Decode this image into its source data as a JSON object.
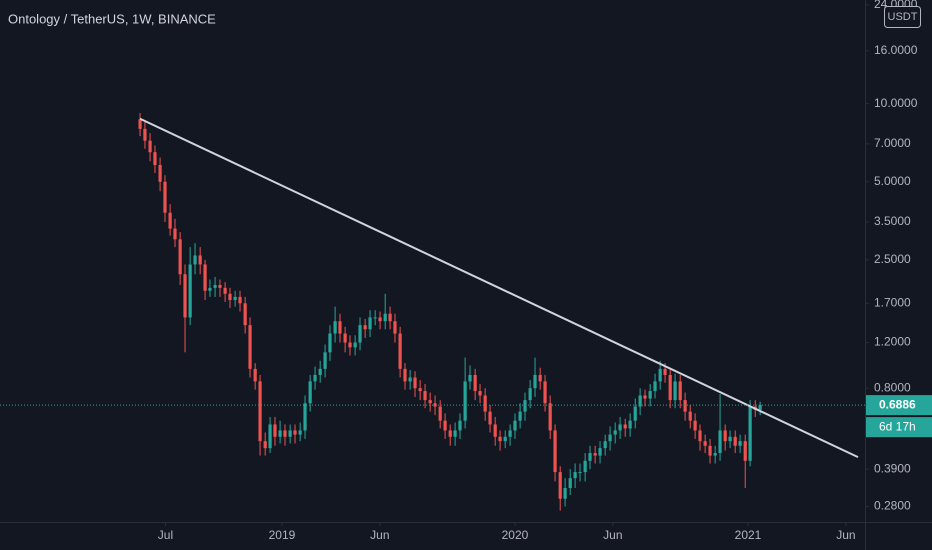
{
  "chart_data": {
    "type": "candlestick",
    "title": "Ontology / TetherUS, 1W, BINANCE",
    "currency": "USDT",
    "countdown": "6d 17h",
    "log_scale": true,
    "grid": false,
    "up_color": "#26a69a",
    "down_color": "#ef5350",
    "xlim": [
      2017.79,
      2021.502
    ],
    "xticks": [
      {
        "value": 2018.5,
        "label": "Jul"
      },
      2019,
      {
        "value": 2019.42,
        "label": "Jun"
      },
      2020,
      {
        "value": 2020.42,
        "label": "Jun"
      },
      2021,
      {
        "value": 2021.42,
        "label": "Jun"
      }
    ],
    "ylim": [
      0.244,
      25.1
    ],
    "yticks": [
      {
        "value": 24,
        "label": "24.0000"
      },
      {
        "value": 16,
        "label": "16.0000"
      },
      {
        "value": 10,
        "label": "10.0000"
      },
      {
        "value": 7,
        "label": "7.0000"
      },
      {
        "value": 5,
        "label": "5.0000"
      },
      {
        "value": 3.5,
        "label": "3.5000"
      },
      {
        "value": 2.5,
        "label": "2.5000"
      },
      {
        "value": 1.7,
        "label": "1.7000"
      },
      {
        "value": 1.2,
        "label": "1.2000"
      },
      {
        "value": 0.8,
        "label": "0.8000"
      },
      {
        "value": 0.39,
        "label": "0.3900"
      },
      {
        "value": 0.28,
        "label": "0.2800"
      }
    ],
    "x": [
      2018.391,
      2018.412,
      2018.434,
      2018.455,
      2018.477,
      2018.498,
      2018.52,
      2018.541,
      2018.563,
      2018.584,
      2018.606,
      2018.627,
      2018.649,
      2018.67,
      2018.691,
      2018.713,
      2018.734,
      2018.756,
      2018.777,
      2018.799,
      2018.82,
      2018.842,
      2018.863,
      2018.885,
      2018.906,
      2018.928,
      2018.949,
      2018.97,
      2018.992,
      2019.013,
      2019.035,
      2019.056,
      2019.078,
      2019.099,
      2019.121,
      2019.142,
      2019.164,
      2019.185,
      2019.206,
      2019.228,
      2019.249,
      2019.271,
      2019.292,
      2019.314,
      2019.335,
      2019.357,
      2019.378,
      2019.4,
      2019.421,
      2019.443,
      2019.464,
      2019.485,
      2019.507,
      2019.528,
      2019.55,
      2019.571,
      2019.593,
      2019.614,
      2019.636,
      2019.657,
      2019.679,
      2019.7,
      2019.722,
      2019.743,
      2019.764,
      2019.786,
      2019.807,
      2019.829,
      2019.85,
      2019.872,
      2019.893,
      2019.915,
      2019.936,
      2019.958,
      2019.979,
      2020.0,
      2020.022,
      2020.043,
      2020.065,
      2020.086,
      2020.108,
      2020.129,
      2020.151,
      2020.172,
      2020.194,
      2020.215,
      2020.237,
      2020.258,
      2020.279,
      2020.301,
      2020.322,
      2020.344,
      2020.365,
      2020.387,
      2020.408,
      2020.43,
      2020.451,
      2020.473,
      2020.494,
      2020.516,
      2020.537,
      2020.558,
      2020.58,
      2020.601,
      2020.623,
      2020.644,
      2020.666,
      2020.687,
      2020.709,
      2020.73,
      2020.752,
      2020.773,
      2020.794,
      2020.816,
      2020.837,
      2020.859,
      2020.88,
      2020.902,
      2020.923,
      2020.945,
      2020.966,
      2020.988,
      2021.009,
      2021.031,
      2021.052
    ],
    "open": [
      8.7,
      8.0,
      7.2,
      6.5,
      5.8,
      5.0,
      3.8,
      3.3,
      3.0,
      2.2,
      1.5,
      2.4,
      2.6,
      2.4,
      1.9,
      1.95,
      2.0,
      1.95,
      1.85,
      1.75,
      1.8,
      1.7,
      1.4,
      0.95,
      0.85,
      0.5,
      0.47,
      0.58,
      0.52,
      0.55,
      0.52,
      0.55,
      0.53,
      0.55,
      0.7,
      0.85,
      0.9,
      0.95,
      1.1,
      1.3,
      1.45,
      1.3,
      1.2,
      1.15,
      1.2,
      1.4,
      1.35,
      1.5,
      1.5,
      1.45,
      1.55,
      1.45,
      1.3,
      0.95,
      0.85,
      0.88,
      0.8,
      0.78,
      0.72,
      0.7,
      0.68,
      0.6,
      0.55,
      0.52,
      0.55,
      0.6,
      0.85,
      0.9,
      0.78,
      0.75,
      0.65,
      0.58,
      0.52,
      0.5,
      0.52,
      0.55,
      0.6,
      0.65,
      0.72,
      0.8,
      0.9,
      0.85,
      0.7,
      0.55,
      0.38,
      0.3,
      0.33,
      0.36,
      0.38,
      0.38,
      0.42,
      0.45,
      0.44,
      0.47,
      0.5,
      0.53,
      0.55,
      0.58,
      0.56,
      0.6,
      0.68,
      0.75,
      0.73,
      0.78,
      0.85,
      0.95,
      0.9,
      0.72,
      0.85,
      0.72,
      0.65,
      0.6,
      0.55,
      0.5,
      0.48,
      0.44,
      0.45,
      0.55,
      0.5,
      0.52,
      0.48,
      0.5,
      0.42,
      0.68,
      0.66
    ],
    "high": [
      9.2,
      8.5,
      7.7,
      6.9,
      6.2,
      5.3,
      4.1,
      3.6,
      3.2,
      2.4,
      2.8,
      2.9,
      2.8,
      2.5,
      2.1,
      2.15,
      2.1,
      2.05,
      1.95,
      1.9,
      1.9,
      1.8,
      1.5,
      1.0,
      0.9,
      0.54,
      0.62,
      0.62,
      0.6,
      0.58,
      0.58,
      0.58,
      0.59,
      0.75,
      0.9,
      0.97,
      1.02,
      1.18,
      1.4,
      1.65,
      1.55,
      1.38,
      1.28,
      1.28,
      1.5,
      1.48,
      1.6,
      1.6,
      1.58,
      1.85,
      1.65,
      1.55,
      1.38,
      1.0,
      0.94,
      0.93,
      0.86,
      0.83,
      0.77,
      0.75,
      0.72,
      0.64,
      0.58,
      0.59,
      0.64,
      1.05,
      0.98,
      0.95,
      0.83,
      0.8,
      0.69,
      0.62,
      0.55,
      0.55,
      0.58,
      0.64,
      0.7,
      0.77,
      0.86,
      1.05,
      0.96,
      0.9,
      0.75,
      0.58,
      0.4,
      0.36,
      0.39,
      0.41,
      0.41,
      0.45,
      0.48,
      0.48,
      0.5,
      0.53,
      0.57,
      0.59,
      0.62,
      0.61,
      0.64,
      0.73,
      0.8,
      0.79,
      0.83,
      0.91,
      1.02,
      1.0,
      0.95,
      0.91,
      0.9,
      0.77,
      0.69,
      0.64,
      0.58,
      0.53,
      0.51,
      0.48,
      0.76,
      0.58,
      0.55,
      0.55,
      0.53,
      0.53,
      0.72,
      0.72,
      0.71
    ],
    "low": [
      7.5,
      6.7,
      6.0,
      5.4,
      4.6,
      3.5,
      3.1,
      2.8,
      2.0,
      1.1,
      1.4,
      2.2,
      2.2,
      1.75,
      1.8,
      1.8,
      1.8,
      1.72,
      1.63,
      1.65,
      1.58,
      1.3,
      0.88,
      0.79,
      0.44,
      0.44,
      0.45,
      0.48,
      0.49,
      0.48,
      0.49,
      0.49,
      0.5,
      0.51,
      0.65,
      0.79,
      0.84,
      0.88,
      1.02,
      1.2,
      1.2,
      1.1,
      1.07,
      1.07,
      1.12,
      1.25,
      1.26,
      1.4,
      1.35,
      1.35,
      1.35,
      1.2,
      0.88,
      0.79,
      0.79,
      0.74,
      0.72,
      0.67,
      0.65,
      0.63,
      0.56,
      0.51,
      0.48,
      0.48,
      0.51,
      0.56,
      0.79,
      0.72,
      0.7,
      0.6,
      0.54,
      0.48,
      0.46,
      0.47,
      0.48,
      0.51,
      0.56,
      0.6,
      0.67,
      0.74,
      0.79,
      0.65,
      0.51,
      0.35,
      0.27,
      0.28,
      0.31,
      0.33,
      0.35,
      0.35,
      0.39,
      0.41,
      0.41,
      0.44,
      0.46,
      0.49,
      0.51,
      0.52,
      0.52,
      0.56,
      0.63,
      0.68,
      0.68,
      0.73,
      0.79,
      0.84,
      0.67,
      0.67,
      0.67,
      0.6,
      0.56,
      0.51,
      0.46,
      0.45,
      0.41,
      0.41,
      0.42,
      0.46,
      0.47,
      0.45,
      0.45,
      0.33,
      0.4,
      0.62,
      0.63
    ],
    "close": [
      8.0,
      7.2,
      6.5,
      5.8,
      5.0,
      3.8,
      3.3,
      3.0,
      2.2,
      1.5,
      2.4,
      2.6,
      2.4,
      1.9,
      1.95,
      2.0,
      1.95,
      1.85,
      1.75,
      1.8,
      1.7,
      1.4,
      0.95,
      0.85,
      0.5,
      0.47,
      0.58,
      0.52,
      0.55,
      0.52,
      0.55,
      0.53,
      0.55,
      0.7,
      0.85,
      0.9,
      0.95,
      1.1,
      1.3,
      1.45,
      1.3,
      1.2,
      1.15,
      1.2,
      1.4,
      1.35,
      1.5,
      1.5,
      1.45,
      1.55,
      1.45,
      1.3,
      0.95,
      0.85,
      0.88,
      0.8,
      0.78,
      0.72,
      0.7,
      0.68,
      0.6,
      0.55,
      0.52,
      0.55,
      0.6,
      0.85,
      0.9,
      0.78,
      0.75,
      0.65,
      0.58,
      0.52,
      0.5,
      0.52,
      0.55,
      0.6,
      0.65,
      0.72,
      0.8,
      0.9,
      0.85,
      0.7,
      0.55,
      0.38,
      0.3,
      0.33,
      0.36,
      0.38,
      0.38,
      0.42,
      0.45,
      0.44,
      0.47,
      0.5,
      0.53,
      0.55,
      0.58,
      0.56,
      0.6,
      0.68,
      0.75,
      0.73,
      0.78,
      0.85,
      0.95,
      0.9,
      0.72,
      0.85,
      0.72,
      0.65,
      0.6,
      0.55,
      0.5,
      0.48,
      0.44,
      0.45,
      0.55,
      0.5,
      0.52,
      0.48,
      0.5,
      0.42,
      0.68,
      0.66,
      0.6886
    ],
    "trendline": {
      "x": [
        2018.391,
        2021.472
      ],
      "values": [
        8.75,
        0.434
      ],
      "color": "#d1d4dc"
    }
  }
}
